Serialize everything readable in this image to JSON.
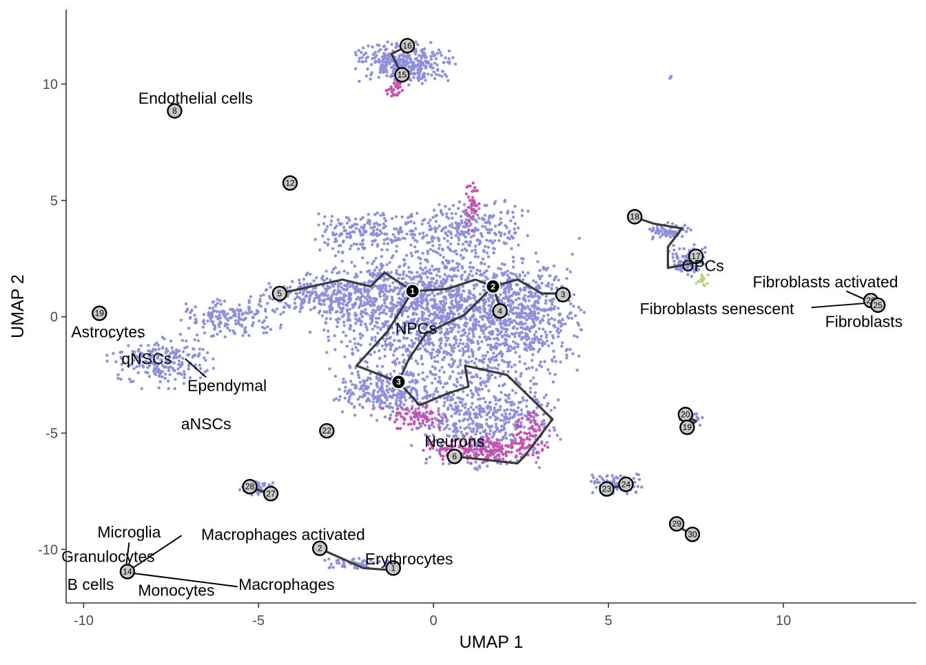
{
  "chart_data": {
    "type": "scatter",
    "xlabel": "UMAP 1",
    "ylabel": "UMAP 2",
    "xlim": [
      -10.5,
      13.8
    ],
    "ylim": [
      -12.3,
      13.2
    ],
    "x_ticks": [
      -10,
      -5,
      0,
      5,
      10
    ],
    "y_ticks": [
      -10,
      -5,
      0,
      5,
      10
    ],
    "x_tick_labels": [
      "-10",
      "-5",
      "0",
      "5",
      "10"
    ],
    "y_tick_labels": [
      "-10",
      "-5",
      "0",
      "5",
      "10"
    ],
    "grid": false,
    "colors": {
      "cells_main": "#8f90dc",
      "cells_magenta": "#c653b0",
      "cells_green": "#b9d28a",
      "trajectory": "#3a3a3a",
      "node_fill": "#c8c8c8",
      "root_fill": "#000000",
      "axis": "#333333",
      "tick_text": "#4d4d4d"
    },
    "point_clouds": [
      {
        "cx": 0.5,
        "cy": 0.0,
        "rx": 3.4,
        "ry": 3.4,
        "n": 1400,
        "color": "main"
      },
      {
        "cx": -1.2,
        "cy": 0.8,
        "rx": 2.2,
        "ry": 1.6,
        "n": 400,
        "color": "main"
      },
      {
        "cx": 2.5,
        "cy": 0.2,
        "rx": 1.7,
        "ry": 1.9,
        "n": 400,
        "color": "main"
      },
      {
        "cx": -3.3,
        "cy": 0.9,
        "rx": 1.6,
        "ry": 0.9,
        "n": 220,
        "color": "main"
      },
      {
        "cx": -5.8,
        "cy": 0.0,
        "rx": 1.4,
        "ry": 0.8,
        "n": 180,
        "color": "main"
      },
      {
        "cx": -7.8,
        "cy": -1.9,
        "rx": 1.4,
        "ry": 1.1,
        "n": 220,
        "color": "main"
      },
      {
        "cx": -1.5,
        "cy": -3.3,
        "rx": 1.3,
        "ry": 1.1,
        "n": 250,
        "color": "main"
      },
      {
        "cx": 1.5,
        "cy": -4.5,
        "rx": 2.0,
        "ry": 1.9,
        "n": 520,
        "color": "main"
      },
      {
        "cx": 1.0,
        "cy": 3.8,
        "rx": 1.7,
        "ry": 1.1,
        "n": 230,
        "color": "main"
      },
      {
        "cx": -2.0,
        "cy": 3.6,
        "rx": 1.4,
        "ry": 0.8,
        "n": 160,
        "color": "main"
      },
      {
        "cx": 1.4,
        "cy": -5.7,
        "rx": 1.7,
        "ry": 0.55,
        "n": 200,
        "color": "magenta"
      },
      {
        "cx": -0.5,
        "cy": -4.3,
        "rx": 0.9,
        "ry": 0.5,
        "n": 70,
        "color": "magenta"
      },
      {
        "cx": 2.8,
        "cy": -4.8,
        "rx": 0.5,
        "ry": 0.9,
        "n": 60,
        "color": "magenta"
      },
      {
        "cx": 1.1,
        "cy": 4.8,
        "rx": 0.2,
        "ry": 1.1,
        "n": 40,
        "color": "magenta"
      },
      {
        "cx": -0.8,
        "cy": 10.9,
        "rx": 1.3,
        "ry": 0.85,
        "n": 360,
        "color": "main"
      },
      {
        "cx": -1.1,
        "cy": 9.8,
        "rx": 0.25,
        "ry": 0.35,
        "n": 30,
        "color": "magenta"
      },
      {
        "cx": 6.7,
        "cy": 3.7,
        "rx": 0.6,
        "ry": 0.35,
        "n": 70,
        "color": "main"
      },
      {
        "cx": 7.3,
        "cy": 2.4,
        "rx": 0.55,
        "ry": 0.7,
        "n": 110,
        "color": "main"
      },
      {
        "cx": 7.7,
        "cy": 1.6,
        "rx": 0.2,
        "ry": 0.3,
        "n": 18,
        "color": "green"
      },
      {
        "cx": 7.3,
        "cy": -4.4,
        "rx": 0.35,
        "ry": 0.35,
        "n": 45,
        "color": "main"
      },
      {
        "cx": 5.2,
        "cy": -7.2,
        "rx": 0.7,
        "ry": 0.45,
        "n": 90,
        "color": "main"
      },
      {
        "cx": -5.0,
        "cy": -7.4,
        "rx": 0.5,
        "ry": 0.35,
        "n": 60,
        "color": "main"
      },
      {
        "cx": -2.2,
        "cy": -10.6,
        "rx": 0.9,
        "ry": 0.25,
        "n": 60,
        "color": "main"
      },
      {
        "cx": 6.8,
        "cy": 10.3,
        "rx": 0.06,
        "ry": 0.06,
        "n": 4,
        "color": "main"
      }
    ],
    "trajectory_edges": [
      [
        [
          -4.4,
          1.0
        ],
        [
          -2.6,
          1.6
        ],
        [
          -1.8,
          1.3
        ],
        [
          -1.4,
          1.9
        ],
        [
          -0.6,
          1.1
        ],
        [
          0.4,
          1.2
        ],
        [
          1.2,
          1.6
        ],
        [
          1.7,
          1.3
        ],
        [
          2.4,
          1.6
        ],
        [
          3.1,
          1.0
        ],
        [
          3.7,
          1.0
        ]
      ],
      [
        [
          -0.6,
          1.1
        ],
        [
          -1.3,
          -0.6
        ],
        [
          -2.2,
          -2.1
        ],
        [
          -1.0,
          -2.8
        ],
        [
          -0.4,
          -3.8
        ],
        [
          0.4,
          -3.3
        ],
        [
          1.0,
          -3.0
        ],
        [
          0.9,
          -2.1
        ],
        [
          2.1,
          -2.5
        ],
        [
          3.4,
          -4.4
        ],
        [
          2.6,
          -6.0
        ],
        [
          2.4,
          -6.3
        ],
        [
          0.6,
          -6.0
        ]
      ],
      [
        [
          1.7,
          1.3
        ],
        [
          0.9,
          0.1
        ],
        [
          -0.2,
          -0.7
        ],
        [
          -0.7,
          -1.8
        ],
        [
          -1.0,
          -2.8
        ]
      ],
      [
        [
          1.7,
          1.3
        ],
        [
          1.9,
          0.4
        ]
      ],
      [
        [
          5.7,
          4.3
        ],
        [
          6.3,
          4.0
        ],
        [
          7.1,
          3.8
        ],
        [
          6.7,
          3.0
        ],
        [
          6.7,
          2.1
        ],
        [
          7.4,
          2.3
        ],
        [
          7.5,
          2.6
        ]
      ],
      [
        [
          -0.8,
          11.6
        ],
        [
          -1.2,
          11.3
        ],
        [
          -0.9,
          10.4
        ]
      ],
      [
        [
          7.2,
          -4.2
        ],
        [
          7.5,
          -4.5
        ],
        [
          7.2,
          -4.8
        ]
      ],
      [
        [
          5.0,
          -7.4
        ],
        [
          5.5,
          -7.2
        ]
      ],
      [
        [
          -5.3,
          -7.3
        ],
        [
          -4.7,
          -7.6
        ]
      ],
      [
        [
          6.9,
          -8.9
        ],
        [
          7.4,
          -9.4
        ]
      ],
      [
        [
          -3.2,
          -10.0
        ],
        [
          -2.0,
          -10.8
        ],
        [
          -1.1,
          -10.9
        ]
      ],
      [
        [
          12.5,
          0.6
        ],
        [
          12.7,
          0.5
        ]
      ]
    ],
    "nodes": [
      {
        "label": "1",
        "x": -0.6,
        "y": 1.1,
        "kind": "root"
      },
      {
        "label": "2",
        "x": 1.7,
        "y": 1.3,
        "kind": "root"
      },
      {
        "label": "3",
        "x": -1.0,
        "y": -2.8,
        "kind": "root"
      },
      {
        "label": "3",
        "x": 3.7,
        "y": 0.95,
        "kind": "leaf"
      },
      {
        "label": "4",
        "x": 1.9,
        "y": 0.25,
        "kind": "leaf"
      },
      {
        "label": "5",
        "x": -4.4,
        "y": 1.0,
        "kind": "leaf"
      },
      {
        "label": "6",
        "x": 0.6,
        "y": -6.0,
        "kind": "leaf"
      },
      {
        "label": "15",
        "x": -0.9,
        "y": 10.4,
        "kind": "leaf"
      },
      {
        "label": "16",
        "x": -0.75,
        "y": 11.65,
        "kind": "leaf"
      },
      {
        "label": "8",
        "x": -7.4,
        "y": 8.85,
        "kind": "leaf"
      },
      {
        "label": "12",
        "x": -4.1,
        "y": 5.75,
        "kind": "leaf"
      },
      {
        "label": "18",
        "x": 5.75,
        "y": 4.3,
        "kind": "leaf"
      },
      {
        "label": "17",
        "x": 7.5,
        "y": 2.6,
        "kind": "leaf"
      },
      {
        "label": "19",
        "x": -9.55,
        "y": 0.15,
        "kind": "leaf"
      },
      {
        "label": "20",
        "x": 7.2,
        "y": -4.2,
        "kind": "leaf"
      },
      {
        "label": "19",
        "x": 7.25,
        "y": -4.75,
        "kind": "leaf"
      },
      {
        "label": "22",
        "x": -3.05,
        "y": -4.9,
        "kind": "leaf"
      },
      {
        "label": "23",
        "x": 4.95,
        "y": -7.4,
        "kind": "leaf"
      },
      {
        "label": "24",
        "x": 5.5,
        "y": -7.2,
        "kind": "leaf"
      },
      {
        "label": "28",
        "x": -5.25,
        "y": -7.3,
        "kind": "leaf"
      },
      {
        "label": "27",
        "x": -4.65,
        "y": -7.6,
        "kind": "leaf"
      },
      {
        "label": "29",
        "x": 6.95,
        "y": -8.9,
        "kind": "leaf"
      },
      {
        "label": "30",
        "x": 7.4,
        "y": -9.35,
        "kind": "leaf"
      },
      {
        "label": "2",
        "x": -3.25,
        "y": -9.95,
        "kind": "leaf"
      },
      {
        "label": "1",
        "x": -1.15,
        "y": -10.8,
        "kind": "leaf"
      },
      {
        "label": "14",
        "x": -8.75,
        "y": -10.95,
        "kind": "leaf"
      },
      {
        "label": "26",
        "x": 12.5,
        "y": 0.7,
        "kind": "leaf"
      },
      {
        "label": "25",
        "x": 12.7,
        "y": 0.5,
        "kind": "leaf"
      }
    ],
    "cell_labels": [
      {
        "text": "Endothelial cells",
        "x": -6.8,
        "y": 9.4,
        "anchor": "middle"
      },
      {
        "text": "NPCs",
        "x": -0.5,
        "y": -0.5,
        "anchor": "middle"
      },
      {
        "text": "OPCs",
        "x": 7.7,
        "y": 2.2,
        "anchor": "middle"
      },
      {
        "text": "Fibroblasts activated",
        "x": 11.2,
        "y": 1.5,
        "anchor": "middle"
      },
      {
        "text": "Fibroblasts senescent",
        "x": 8.1,
        "y": 0.35,
        "anchor": "middle"
      },
      {
        "text": "Fibroblasts",
        "x": 12.3,
        "y": -0.2,
        "anchor": "middle"
      },
      {
        "text": "Astrocytes",
        "x": -9.3,
        "y": -0.65,
        "anchor": "middle"
      },
      {
        "text": "qNSCs",
        "x": -8.2,
        "y": -1.8,
        "anchor": "middle"
      },
      {
        "text": "Ependymal",
        "x": -5.9,
        "y": -2.95,
        "anchor": "middle"
      },
      {
        "text": "aNSCs",
        "x": -6.5,
        "y": -4.6,
        "anchor": "middle"
      },
      {
        "text": "Neurons",
        "x": 0.6,
        "y": -5.35,
        "anchor": "middle"
      },
      {
        "text": "Microglia",
        "x": -8.7,
        "y": -9.25,
        "anchor": "middle"
      },
      {
        "text": "Macrophages activated",
        "x": -4.3,
        "y": -9.35,
        "anchor": "middle"
      },
      {
        "text": "Granulocytes",
        "x": -9.3,
        "y": -10.3,
        "anchor": "middle"
      },
      {
        "text": "Erythrocytes",
        "x": -0.7,
        "y": -10.4,
        "anchor": "middle"
      },
      {
        "text": "B cells",
        "x": -9.8,
        "y": -11.5,
        "anchor": "middle"
      },
      {
        "text": "Monocytes",
        "x": -7.35,
        "y": -11.75,
        "anchor": "middle"
      },
      {
        "text": "Macrophages",
        "x": -4.2,
        "y": -11.5,
        "anchor": "middle"
      }
    ],
    "label_leaders": [
      [
        [
          -7.1,
          -1.8
        ],
        [
          -6.5,
          -2.6
        ]
      ],
      [
        [
          12.4,
          0.7
        ],
        [
          11.8,
          1.1
        ]
      ],
      [
        [
          10.8,
          0.4
        ],
        [
          12.5,
          0.6
        ]
      ],
      [
        [
          -8.7,
          -9.7
        ],
        [
          -8.8,
          -10.9
        ]
      ],
      [
        [
          -7.2,
          -9.4
        ],
        [
          -8.7,
          -10.9
        ]
      ],
      [
        [
          -5.6,
          -11.6
        ],
        [
          -8.7,
          -11.0
        ]
      ]
    ]
  }
}
